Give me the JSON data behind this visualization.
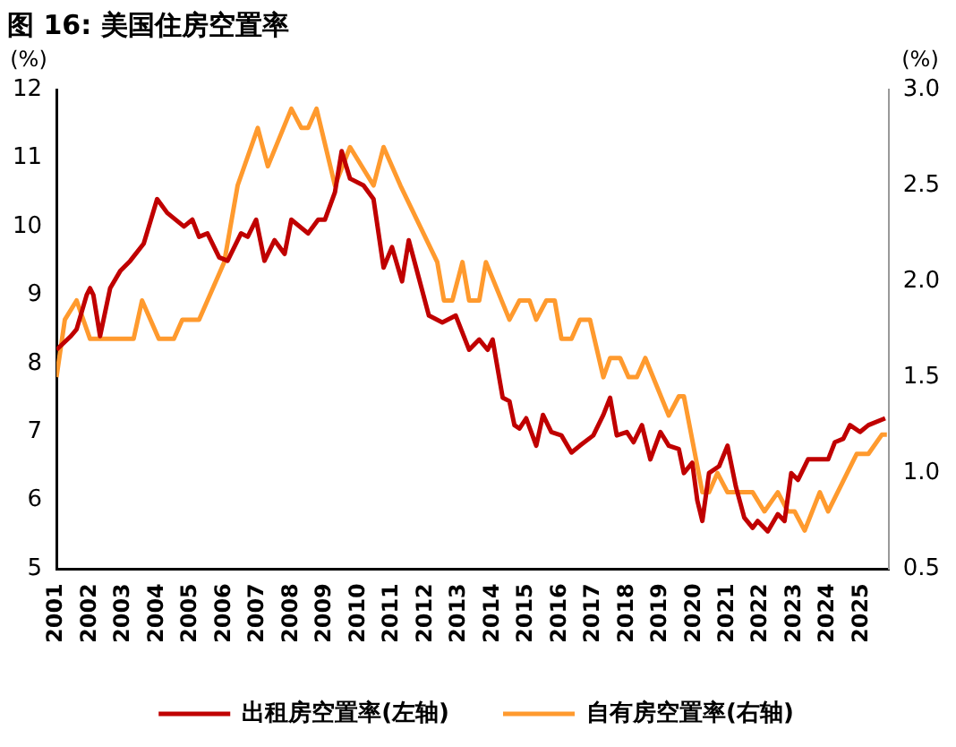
{
  "chart_data": {
    "type": "line",
    "title": "图 16: 美国住房空置率",
    "ylabel": "(%)",
    "y2label": "(%)",
    "xlim": [
      2001,
      2025.8
    ],
    "xticks": [
      2001,
      2002,
      2003,
      2004,
      2005,
      2006,
      2007,
      2008,
      2009,
      2010,
      2011,
      2012,
      2013,
      2014,
      2015,
      2016,
      2017,
      2018,
      2019,
      2020,
      2021,
      2022,
      2023,
      2024,
      2025
    ],
    "ylim": [
      5,
      12
    ],
    "yticks": [
      5,
      6,
      7,
      8,
      9,
      10,
      11,
      12
    ],
    "y2lim": [
      0.5,
      3.0
    ],
    "y2ticks": [
      {
        "value": 0.5,
        "label": "0.5"
      },
      {
        "value": 1,
        "label": "1.0"
      },
      {
        "value": 1.5,
        "label": "1.5"
      },
      {
        "value": 2,
        "label": "2.0"
      },
      {
        "value": 2.5,
        "label": "2.5"
      },
      {
        "value": 3,
        "label": "3.0"
      }
    ],
    "grid": false,
    "legend": "bottom",
    "marker": "none",
    "line_style": "solid",
    "series": [
      {
        "name": "出租房空置率(左轴)",
        "color": "#c00000",
        "x": [
          2001,
          2001.43,
          2001.6,
          2001.9,
          2002,
          2002.1,
          2002.3,
          2002.6,
          2002.9,
          2003.2,
          2003.6,
          2004,
          2004.3,
          2004.8,
          2005.05,
          2005.25,
          2005.5,
          2005.85,
          2006.1,
          2006.5,
          2006.7,
          2006.95,
          2007.2,
          2007.5,
          2007.8,
          2008,
          2008.5,
          2008.8,
          2009,
          2009.3,
          2009.5,
          2009.75,
          2010.15,
          2010.45,
          2010.75,
          2011,
          2011.3,
          2011.5,
          2011.8,
          2012.1,
          2012.5,
          2012.9,
          2013.3,
          2013.6,
          2013.85,
          2014,
          2014.3,
          2014.5,
          2014.65,
          2014.8,
          2015,
          2015.3,
          2015.5,
          2015.75,
          2016.05,
          2016.35,
          2016.6,
          2017,
          2017.3,
          2017.5,
          2017.7,
          2018,
          2018.2,
          2018.45,
          2018.7,
          2019,
          2019.25,
          2019.55,
          2019.7,
          2019.95,
          2020.1,
          2020.25,
          2020.45,
          2020.75,
          2021,
          2021.25,
          2021.5,
          2021.75,
          2021.9,
          2022.2,
          2022.5,
          2022.7,
          2022.9,
          2023.1,
          2023.4,
          2024,
          2024.2,
          2024.45,
          2024.65,
          2024.95,
          2025.2,
          2025.7
        ],
        "values": [
          8.2,
          8.4,
          8.5,
          9.0,
          9.1,
          9.0,
          8.4,
          9.1,
          9.35,
          9.5,
          9.75,
          10.4,
          10.2,
          10.0,
          10.1,
          9.85,
          9.9,
          9.55,
          9.5,
          9.9,
          9.85,
          10.1,
          9.5,
          9.8,
          9.6,
          10.1,
          9.9,
          10.1,
          10.1,
          10.5,
          11.1,
          10.7,
          10.6,
          10.4,
          9.4,
          9.7,
          9.2,
          9.8,
          9.25,
          8.7,
          8.6,
          8.7,
          8.2,
          8.35,
          8.2,
          8.35,
          7.5,
          7.45,
          7.1,
          7.05,
          7.2,
          6.8,
          7.25,
          7.0,
          6.95,
          6.7,
          6.8,
          6.95,
          7.25,
          7.5,
          6.95,
          7.0,
          6.85,
          7.1,
          6.6,
          7.0,
          6.8,
          6.75,
          6.4,
          6.55,
          6.0,
          5.7,
          6.4,
          6.5,
          6.8,
          6.2,
          5.75,
          5.6,
          5.7,
          5.55,
          5.8,
          5.7,
          6.4,
          6.3,
          6.6,
          6.6,
          6.85,
          6.9,
          7.1,
          7.0,
          7.1,
          7.2
        ]
      },
      {
        "name": "自有房空置率(右轴)",
        "color": "#ff9a2e",
        "axis": "y2",
        "x": [
          2001,
          2001.25,
          2001.6,
          2002,
          2003.3,
          2003.55,
          2004.05,
          2004.5,
          2004.75,
          2005.25,
          2006,
          2006.4,
          2007,
          2007.3,
          2008,
          2008.3,
          2008.5,
          2008.75,
          2009.3,
          2009.75,
          2010.45,
          2010.75,
          2011.25,
          2012.35,
          2012.55,
          2012.8,
          2013.1,
          2013.3,
          2013.6,
          2013.8,
          2014.5,
          2014.8,
          2015.1,
          2015.3,
          2015.6,
          2015.85,
          2016.05,
          2016.35,
          2016.6,
          2016.9,
          2017.3,
          2017.5,
          2017.8,
          2018.05,
          2018.3,
          2018.55,
          2019.25,
          2019.55,
          2019.7,
          2020.25,
          2020.45,
          2020.7,
          2021,
          2021.75,
          2022.1,
          2022.5,
          2022.8,
          2023,
          2023.3,
          2023.75,
          2024,
          2024.85,
          2025.2,
          2025.6,
          2025.75
        ],
        "values": [
          1.5,
          1.8,
          1.9,
          1.7,
          1.7,
          1.9,
          1.7,
          1.7,
          1.8,
          1.8,
          2.1,
          2.5,
          2.8,
          2.6,
          2.9,
          2.8,
          2.8,
          2.9,
          2.5,
          2.7,
          2.5,
          2.7,
          2.5,
          2.1,
          1.9,
          1.9,
          2.1,
          1.9,
          1.9,
          2.1,
          1.8,
          1.9,
          1.9,
          1.8,
          1.9,
          1.9,
          1.7,
          1.7,
          1.8,
          1.8,
          1.5,
          1.6,
          1.6,
          1.5,
          1.5,
          1.6,
          1.3,
          1.4,
          1.4,
          0.9,
          0.9,
          1.0,
          0.9,
          0.9,
          0.8,
          0.9,
          0.8,
          0.8,
          0.7,
          0.9,
          0.8,
          1.1,
          1.1,
          1.2,
          1.2
        ]
      }
    ]
  }
}
